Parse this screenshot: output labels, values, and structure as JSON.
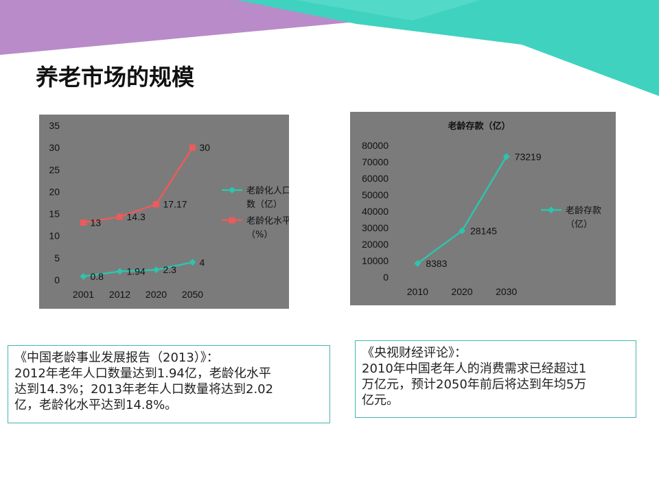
{
  "page_title": "养老市场的规模",
  "colors": {
    "purple": "#b98bc9",
    "teal": "#3fd2bf",
    "teal_light": "#6fe3d4",
    "chart_bg": "#7b7b7b",
    "series_teal": "#2ec4ad",
    "series_red": "#ee5a5a"
  },
  "chart_data": [
    {
      "type": "line",
      "categories": [
        "2001",
        "2012",
        "2020",
        "2050"
      ],
      "ylim": [
        0,
        35
      ],
      "yticks": [
        "35",
        "30",
        "25",
        "20",
        "15",
        "10",
        "5",
        "0"
      ],
      "legend_position": "right",
      "grid": false,
      "series": [
        {
          "name_lines": [
            "老龄化人口",
            "数（亿）"
          ],
          "values": [
            0.8,
            1.94,
            2.3,
            4
          ],
          "labels": [
            "0.8",
            "1.94",
            "2.3",
            "4"
          ],
          "color": "#2ec4ad",
          "marker": "diamond"
        },
        {
          "name_lines": [
            "老龄化水平",
            "（%）"
          ],
          "values": [
            13,
            14.3,
            17.17,
            30
          ],
          "labels": [
            "13",
            "14.3",
            "17.17",
            "30"
          ],
          "color": "#ee5a5a",
          "marker": "square"
        }
      ]
    },
    {
      "type": "line",
      "title": "老龄存款（亿）",
      "categories": [
        "2010",
        "2020",
        "2030"
      ],
      "ylim": [
        0,
        80000
      ],
      "yticks": [
        "80000",
        "70000",
        "60000",
        "50000",
        "40000",
        "30000",
        "20000",
        "10000",
        "0"
      ],
      "legend_position": "right",
      "grid": false,
      "series": [
        {
          "name_lines": [
            "老龄存款",
            "（亿）"
          ],
          "values": [
            8383,
            28145,
            73219
          ],
          "labels": [
            "8383",
            "28145",
            "73219"
          ],
          "color": "#2ec4ad",
          "marker": "diamond"
        }
      ]
    }
  ],
  "notes": [
    {
      "lines": [
        "《中国老龄事业发展报告（2013）》：",
        "2012年老年人口数量达到1.94亿，老龄化水平",
        "达到14.3%；2013年老年人口数量将达到2.02",
        "亿，老龄化水平达到14.8%。"
      ]
    },
    {
      "lines": [
        "《央视财经评论》：",
        "2010年中国老年人的消费需求已经超过1",
        "万亿元，预计2050年前后将达到年均5万",
        "亿元。"
      ]
    }
  ]
}
